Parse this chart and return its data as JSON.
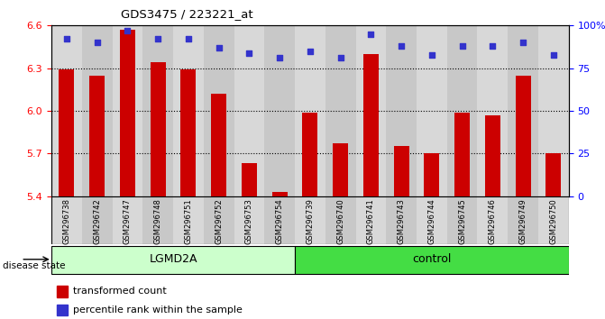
{
  "title": "GDS3475 / 223221_at",
  "samples": [
    "GSM296738",
    "GSM296742",
    "GSM296747",
    "GSM296748",
    "GSM296751",
    "GSM296752",
    "GSM296753",
    "GSM296754",
    "GSM296739",
    "GSM296740",
    "GSM296741",
    "GSM296743",
    "GSM296744",
    "GSM296745",
    "GSM296746",
    "GSM296749",
    "GSM296750"
  ],
  "bar_values": [
    6.29,
    6.25,
    6.57,
    6.34,
    6.29,
    6.12,
    5.63,
    5.43,
    5.99,
    5.77,
    6.4,
    5.75,
    5.7,
    5.99,
    5.97,
    6.25,
    5.7
  ],
  "percentile_values": [
    92,
    90,
    97,
    92,
    92,
    87,
    84,
    81,
    85,
    81,
    95,
    88,
    83,
    88,
    88,
    90,
    83
  ],
  "bar_color": "#cc0000",
  "dot_color": "#3333cc",
  "ylim_left": [
    5.4,
    6.6
  ],
  "ylim_right": [
    0,
    100
  ],
  "yticks_left": [
    5.4,
    5.7,
    6.0,
    6.3,
    6.6
  ],
  "yticks_right": [
    0,
    25,
    50,
    75,
    100
  ],
  "ytick_labels_right": [
    "0",
    "25",
    "50",
    "75",
    "100%"
  ],
  "grid_values": [
    5.7,
    6.0,
    6.3
  ],
  "groups": [
    {
      "label": "LGMD2A",
      "start": 0,
      "end": 8,
      "color": "#ccffcc"
    },
    {
      "label": "control",
      "start": 8,
      "end": 17,
      "color": "#44dd44"
    }
  ],
  "disease_state_label": "disease state",
  "legend_items": [
    {
      "color": "#cc0000",
      "label": "transformed count"
    },
    {
      "color": "#3333cc",
      "label": "percentile rank within the sample"
    }
  ],
  "bar_width": 0.5,
  "plot_bg_color": "#ffffff",
  "col_colors": [
    "#d8d8d8",
    "#c8c8c8"
  ]
}
